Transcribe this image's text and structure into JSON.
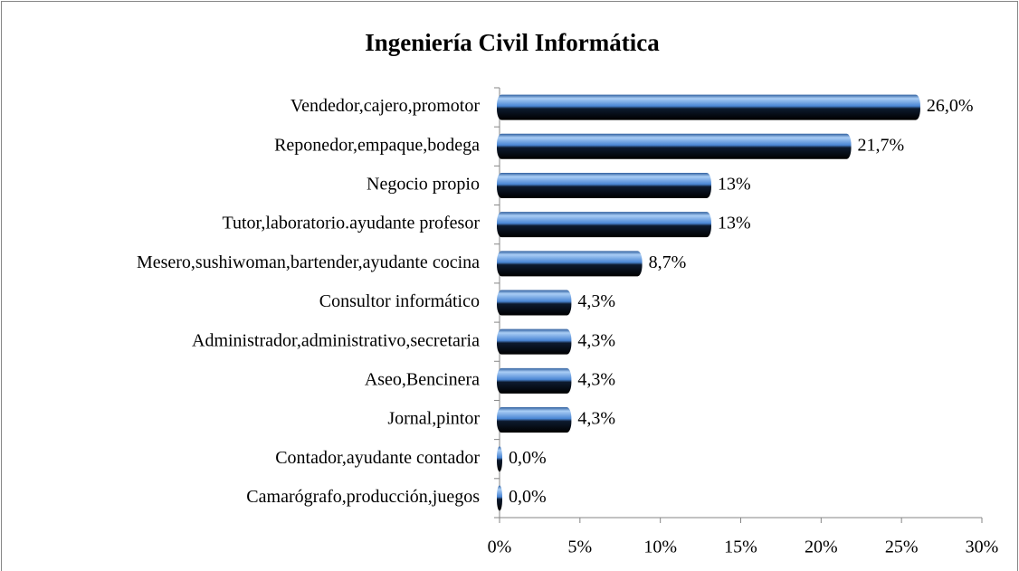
{
  "chart_data": {
    "type": "bar",
    "orientation": "horizontal",
    "title": "Ingeniería Civil Informática",
    "categories": [
      "Vendedor,cajero,promotor",
      "Reponedor,empaque,bodega",
      "Negocio propio",
      "Tutor,laboratorio.ayudante profesor",
      "Mesero,sushiwoman,bartender,ayudante cocina",
      "Consultor informático",
      "Administrador,administrativo,secretaria",
      "Aseo,Bencinera",
      "Jornal,pintor",
      "Contador,ayudante contador",
      "Camarógrafo,producción,juegos"
    ],
    "values": [
      26.0,
      21.7,
      13,
      13,
      8.7,
      4.3,
      4.3,
      4.3,
      4.3,
      0.0,
      0.0
    ],
    "value_labels": [
      "26,0%",
      "21,7%",
      "13%",
      "13%",
      "8,7%",
      "4,3%",
      "4,3%",
      "4,3%",
      "4,3%",
      "0,0%",
      "0,0%"
    ],
    "color": "#4a86d4",
    "xlim": [
      0,
      30
    ],
    "xticks": [
      {
        "value": 0,
        "label": "0%"
      },
      {
        "value": 5,
        "label": "5%"
      },
      {
        "value": 10,
        "label": "10%"
      },
      {
        "value": 15,
        "label": "15%"
      },
      {
        "value": 20,
        "label": "20%"
      },
      {
        "value": 25,
        "label": "25%"
      },
      {
        "value": 30,
        "label": "30%"
      }
    ],
    "grid": false
  }
}
